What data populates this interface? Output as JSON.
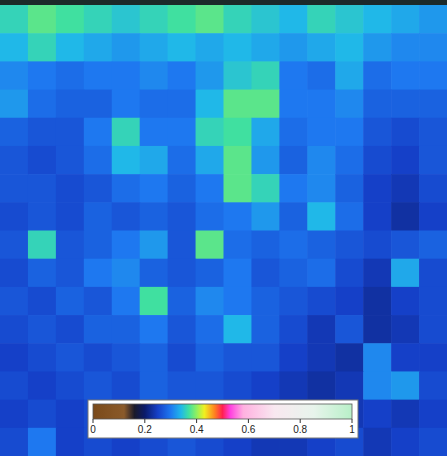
{
  "chart_data": {
    "type": "heatmap",
    "cells": [
      [
        0.36,
        0.38,
        0.37,
        0.36,
        0.35,
        0.36,
        0.37,
        0.38,
        0.36,
        0.35,
        0.34,
        0.36,
        0.35,
        0.34,
        0.33,
        0.32
      ],
      [
        0.34,
        0.36,
        0.34,
        0.33,
        0.32,
        0.33,
        0.34,
        0.33,
        0.34,
        0.33,
        0.32,
        0.33,
        0.34,
        0.32,
        0.31,
        0.31
      ],
      [
        0.31,
        0.3,
        0.29,
        0.3,
        0.3,
        0.31,
        0.3,
        0.32,
        0.35,
        0.36,
        0.3,
        0.29,
        0.33,
        0.29,
        0.3,
        0.3
      ],
      [
        0.32,
        0.29,
        0.28,
        0.28,
        0.3,
        0.29,
        0.29,
        0.34,
        0.38,
        0.38,
        0.3,
        0.3,
        0.31,
        0.28,
        0.28,
        0.28
      ],
      [
        0.28,
        0.27,
        0.27,
        0.3,
        0.36,
        0.3,
        0.3,
        0.36,
        0.37,
        0.33,
        0.29,
        0.3,
        0.3,
        0.27,
        0.26,
        0.27
      ],
      [
        0.27,
        0.26,
        0.27,
        0.29,
        0.34,
        0.33,
        0.29,
        0.33,
        0.38,
        0.32,
        0.28,
        0.31,
        0.29,
        0.26,
        0.25,
        0.27
      ],
      [
        0.27,
        0.27,
        0.26,
        0.27,
        0.29,
        0.3,
        0.28,
        0.3,
        0.38,
        0.36,
        0.3,
        0.31,
        0.28,
        0.25,
        0.24,
        0.26
      ],
      [
        0.26,
        0.27,
        0.26,
        0.28,
        0.27,
        0.28,
        0.27,
        0.29,
        0.3,
        0.32,
        0.28,
        0.34,
        0.29,
        0.25,
        0.23,
        0.25
      ],
      [
        0.27,
        0.36,
        0.27,
        0.28,
        0.3,
        0.32,
        0.27,
        0.38,
        0.29,
        0.28,
        0.29,
        0.28,
        0.27,
        0.26,
        0.27,
        0.28
      ],
      [
        0.26,
        0.28,
        0.27,
        0.3,
        0.31,
        0.28,
        0.27,
        0.28,
        0.3,
        0.27,
        0.28,
        0.29,
        0.26,
        0.24,
        0.33,
        0.26
      ],
      [
        0.27,
        0.26,
        0.28,
        0.27,
        0.3,
        0.37,
        0.28,
        0.31,
        0.3,
        0.28,
        0.27,
        0.26,
        0.25,
        0.23,
        0.25,
        0.26
      ],
      [
        0.26,
        0.27,
        0.26,
        0.28,
        0.28,
        0.3,
        0.27,
        0.29,
        0.34,
        0.28,
        0.26,
        0.24,
        0.27,
        0.23,
        0.24,
        0.26
      ],
      [
        0.25,
        0.26,
        0.27,
        0.26,
        0.27,
        0.28,
        0.26,
        0.28,
        0.27,
        0.27,
        0.25,
        0.24,
        0.23,
        0.31,
        0.25,
        0.25
      ],
      [
        0.26,
        0.25,
        0.26,
        0.27,
        0.26,
        0.28,
        0.27,
        0.27,
        0.26,
        0.25,
        0.24,
        0.23,
        0.24,
        0.31,
        0.32,
        0.26
      ],
      [
        0.25,
        0.26,
        0.25,
        0.26,
        0.26,
        0.27,
        0.26,
        0.26,
        0.25,
        0.24,
        0.23,
        0.24,
        0.24,
        0.25,
        0.24,
        0.25
      ],
      [
        0.26,
        0.3,
        0.25,
        0.26,
        0.25,
        0.26,
        0.27,
        0.26,
        0.25,
        0.24,
        0.24,
        0.25,
        0.26,
        0.24,
        0.25,
        0.26
      ]
    ],
    "colorbar": {
      "lim": [
        0,
        1
      ],
      "ticks": [
        0,
        0.2,
        0.4,
        0.6,
        0.8,
        1
      ]
    }
  }
}
